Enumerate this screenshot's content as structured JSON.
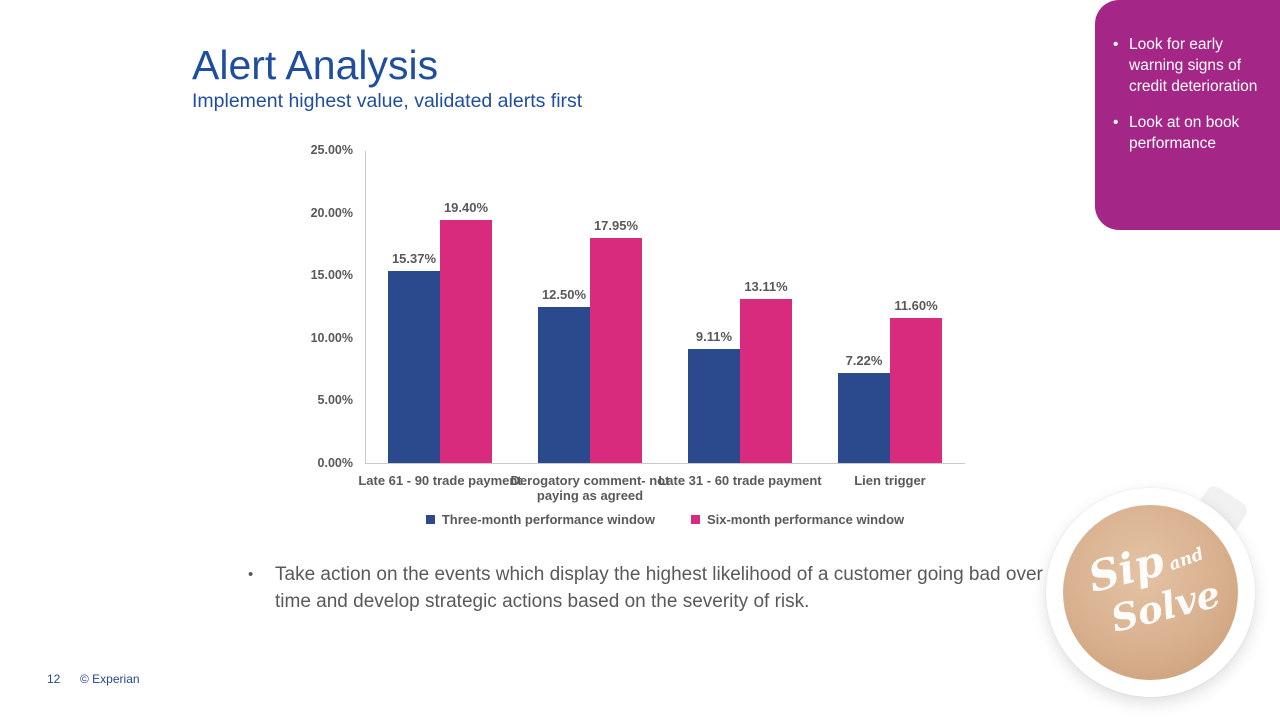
{
  "slide": {
    "title": "Alert Analysis",
    "subtitle": "Implement highest value, validated alerts first",
    "page_number": "12",
    "copyright": "© Experian",
    "body_bullet": "Take action on the events which display the highest likelihood of a customer going bad over time and develop strategic actions based on the severity of risk."
  },
  "callout": {
    "bg_color": "#A42787",
    "bullets": [
      "Look for early warning signs of credit deterioration",
      "Look at on book performance"
    ]
  },
  "chart_data": {
    "type": "bar",
    "title": "",
    "categories": [
      "Late 61 - 90 trade payment",
      "Derogatory comment- not paying as agreed",
      "Late 31 - 60 trade payment",
      "Lien trigger"
    ],
    "series": [
      {
        "name": "Three-month performance window",
        "color": "#2B4A8E",
        "values": [
          15.37,
          12.5,
          9.11,
          7.22
        ]
      },
      {
        "name": "Six-month performance window",
        "color": "#D92B7E",
        "values": [
          19.4,
          17.95,
          13.11,
          11.6
        ]
      }
    ],
    "ylim": [
      0,
      25
    ],
    "y_tick_step": 5,
    "y_tick_labels": [
      "0.00%",
      "5.00%",
      "10.00%",
      "15.00%",
      "20.00%",
      "25.00%"
    ],
    "value_label_format": "percent_2dp",
    "grid": false,
    "legend_position": "bottom",
    "xlabel": "",
    "ylabel": ""
  },
  "decor": {
    "coffee_text": {
      "word1": "Sip",
      "word2": "and",
      "word3": "Solve"
    }
  }
}
